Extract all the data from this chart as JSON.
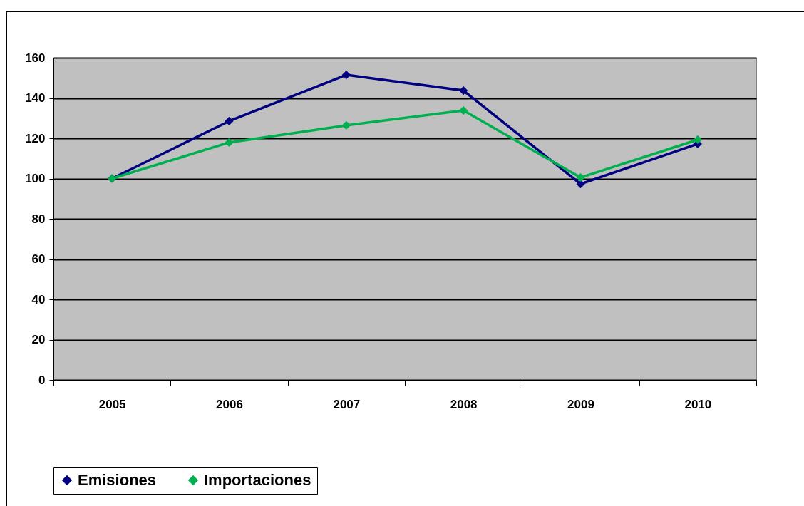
{
  "chart_data": {
    "type": "line",
    "categories": [
      "2005",
      "2006",
      "2007",
      "2008",
      "2009",
      "2010"
    ],
    "series": [
      {
        "name": "Emisiones",
        "color": "#000080",
        "values": [
          100,
          128.5,
          151.5,
          143.7,
          97.3,
          117.2
        ]
      },
      {
        "name": "Importaciones",
        "color": "#00b050",
        "values": [
          100,
          117.9,
          126.4,
          133.8,
          100.5,
          119.3
        ]
      }
    ],
    "ylim": [
      0,
      160
    ],
    "yticks": [
      0,
      20,
      40,
      60,
      80,
      100,
      120,
      140,
      160
    ],
    "grid": "y",
    "legend": "bottom",
    "marker": "diamond",
    "line_style": "solid"
  }
}
